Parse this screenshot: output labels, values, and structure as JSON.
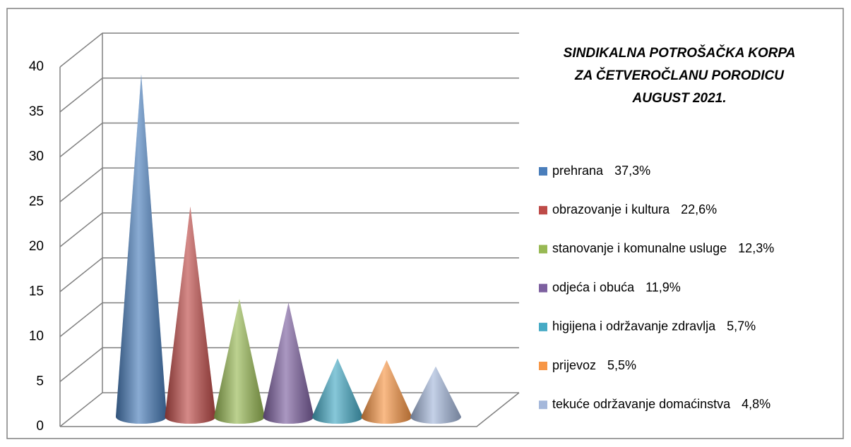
{
  "chart_data": {
    "type": "cone",
    "title": [
      "SINDIKALNA POTROŠAČKA KORPA",
      "ZA ČETVEROČLANU PORODICU",
      "AUGUST 2021."
    ],
    "categories": [
      "prehrana",
      "obrazovanje i kultura",
      "stanovanje i komunalne usluge",
      "odjeća i obuća",
      "higijena i održavanje zdravlja",
      "prijevoz",
      "tekuće održavanje domaćinstva"
    ],
    "values": [
      37.3,
      22.6,
      12.3,
      11.9,
      5.7,
      5.5,
      4.8
    ],
    "value_labels": [
      "37,3%",
      "22,6%",
      "12,3%",
      "11,9%",
      "5,7%",
      "5,5%",
      "4,8%"
    ],
    "colors": [
      "#4a7ebb",
      "#be4b48",
      "#98b954",
      "#7d60a0",
      "#46aac5",
      "#f79646",
      "#a5b8db"
    ],
    "ylim": [
      0,
      40
    ],
    "yticks": [
      0,
      5,
      10,
      15,
      20,
      25,
      30,
      35,
      40
    ],
    "grid": true,
    "legend": "right"
  }
}
